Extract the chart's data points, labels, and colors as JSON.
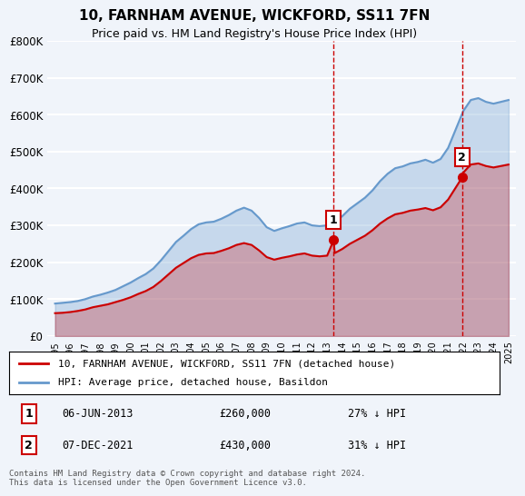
{
  "title": "10, FARNHAM AVENUE, WICKFORD, SS11 7FN",
  "subtitle": "Price paid vs. HM Land Registry's House Price Index (HPI)",
  "legend_label_red": "10, FARNHAM AVENUE, WICKFORD, SS11 7FN (detached house)",
  "legend_label_blue": "HPI: Average price, detached house, Basildon",
  "sale1_date": 2013.43,
  "sale1_label": "06-JUN-2013",
  "sale1_price": 260000,
  "sale1_pct": "27% ↓ HPI",
  "sale2_date": 2021.93,
  "sale2_label": "07-DEC-2021",
  "sale2_price": 430000,
  "sale2_pct": "31% ↓ HPI",
  "footer": "Contains HM Land Registry data © Crown copyright and database right 2024.\nThis data is licensed under the Open Government Licence v3.0.",
  "ylim": [
    0,
    800000
  ],
  "xlim": [
    1994.5,
    2025.5
  ],
  "yticks": [
    0,
    100000,
    200000,
    300000,
    400000,
    500000,
    600000,
    700000,
    800000
  ],
  "ytick_labels": [
    "£0",
    "£100K",
    "£200K",
    "£300K",
    "£400K",
    "£500K",
    "£600K",
    "£700K",
    "£800K"
  ],
  "background_color": "#f0f4fa",
  "plot_bg_color": "#f0f4fa",
  "grid_color": "#ffffff",
  "red_line_color": "#cc0000",
  "blue_line_color": "#6699cc",
  "hpi_data_x": [
    1995,
    1995.5,
    1996,
    1996.5,
    1997,
    1997.5,
    1998,
    1998.5,
    1999,
    1999.5,
    2000,
    2000.5,
    2001,
    2001.5,
    2002,
    2002.5,
    2003,
    2003.5,
    2004,
    2004.5,
    2005,
    2005.5,
    2006,
    2006.5,
    2007,
    2007.5,
    2008,
    2008.5,
    2009,
    2009.5,
    2010,
    2010.5,
    2011,
    2011.5,
    2012,
    2012.5,
    2013,
    2013.5,
    2014,
    2014.5,
    2015,
    2015.5,
    2016,
    2016.5,
    2017,
    2017.5,
    2018,
    2018.5,
    2019,
    2019.5,
    2020,
    2020.5,
    2021,
    2021.5,
    2022,
    2022.5,
    2023,
    2023.5,
    2024,
    2024.5,
    2025
  ],
  "hpi_data_y": [
    88000,
    90000,
    92000,
    95000,
    100000,
    107000,
    112000,
    118000,
    125000,
    135000,
    145000,
    157000,
    168000,
    183000,
    205000,
    230000,
    255000,
    272000,
    290000,
    303000,
    308000,
    310000,
    318000,
    328000,
    340000,
    348000,
    340000,
    320000,
    295000,
    285000,
    292000,
    298000,
    305000,
    308000,
    300000,
    298000,
    300000,
    310000,
    325000,
    345000,
    360000,
    375000,
    395000,
    420000,
    440000,
    455000,
    460000,
    468000,
    472000,
    478000,
    470000,
    480000,
    510000,
    560000,
    610000,
    640000,
    645000,
    635000,
    630000,
    635000,
    640000
  ],
  "price_data_x": [
    1995,
    1995.5,
    1996,
    1996.5,
    1997,
    1997.5,
    1998,
    1998.5,
    1999,
    1999.5,
    2000,
    2000.5,
    2001,
    2001.5,
    2002,
    2002.5,
    2003,
    2003.5,
    2004,
    2004.5,
    2005,
    2005.5,
    2006,
    2006.5,
    2007,
    2007.5,
    2008,
    2008.5,
    2009,
    2009.5,
    2010,
    2010.5,
    2011,
    2011.5,
    2012,
    2012.5,
    2013,
    2013.43,
    2013.5,
    2014,
    2014.5,
    2015,
    2015.5,
    2016,
    2016.5,
    2017,
    2017.5,
    2018,
    2018.5,
    2019,
    2019.5,
    2020,
    2020.5,
    2021,
    2021.93,
    2022,
    2022.5,
    2023,
    2023.5,
    2024,
    2024.5,
    2025
  ],
  "price_data_y": [
    62000,
    63000,
    65000,
    68000,
    72000,
    78000,
    82000,
    86000,
    92000,
    98000,
    105000,
    114000,
    122000,
    133000,
    149000,
    167000,
    185000,
    198000,
    211000,
    220000,
    224000,
    225000,
    231000,
    238000,
    247000,
    252000,
    247000,
    232000,
    214000,
    207000,
    212000,
    216000,
    221000,
    224000,
    218000,
    216000,
    218000,
    260000,
    225000,
    236000,
    250000,
    261000,
    272000,
    287000,
    305000,
    319000,
    330000,
    334000,
    340000,
    343000,
    347000,
    341000,
    349000,
    370000,
    430000,
    443000,
    465000,
    468000,
    461000,
    457000,
    461000,
    465000
  ]
}
